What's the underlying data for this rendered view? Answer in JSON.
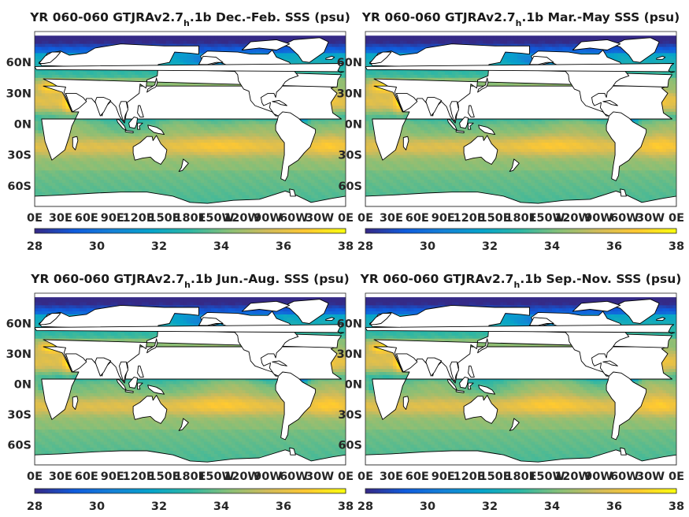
{
  "figure": {
    "panels": [
      {
        "title_main": "YR 060-060 GTJRAv2.7",
        "title_sub": "h",
        "title_tail": ".1b Dec.-Feb. SSS (psu)",
        "season": "Dec.-Feb."
      },
      {
        "title_main": "YR 060-060 GTJRAv2.7",
        "title_sub": "h",
        "title_tail": ".1b Mar.-May SSS (psu)",
        "season": "Mar.-May"
      },
      {
        "title_main": "YR 060-060 GTJRAv2.7",
        "title_sub": "h",
        "title_tail": ".1b Jun.-Aug. SSS (psu)",
        "season": "Jun.-Aug."
      },
      {
        "title_main": "YR 060-060 GTJRAv2.7",
        "title_sub": "h",
        "title_tail": ".1b Sep.-Nov. SSS (psu)",
        "season": "Sep.-Nov."
      }
    ]
  },
  "chart_data": {
    "type": "heatmap",
    "variable": "SSS (psu)",
    "projection": "equirectangular",
    "lon_range": [
      0,
      360
    ],
    "lat_range": [
      -80,
      90
    ],
    "x_ticks": {
      "values": [
        0,
        30,
        60,
        90,
        120,
        150,
        180,
        210,
        240,
        270,
        300,
        330,
        360
      ],
      "labels": [
        "0E",
        "30E",
        "60E",
        "90E",
        "120E",
        "150E",
        "180E",
        "150W",
        "120W",
        "90W",
        "60W",
        "30W",
        "0E"
      ]
    },
    "y_ticks": {
      "values": [
        60,
        30,
        0,
        -30,
        -60
      ],
      "labels": [
        "60N",
        "30N",
        "0N",
        "30S",
        "60S"
      ]
    },
    "colorbar": {
      "min": 28,
      "max": 38,
      "ticks": [
        28,
        30,
        32,
        34,
        36,
        38
      ],
      "colormap": "parula",
      "colors": [
        "#352a87",
        "#0f5cdd",
        "#1481d6",
        "#06a4ca",
        "#2eb7a4",
        "#87bf77",
        "#d1bb59",
        "#fec832",
        "#f9fb0e"
      ]
    },
    "land_color": "#ffffff",
    "grid": false
  }
}
